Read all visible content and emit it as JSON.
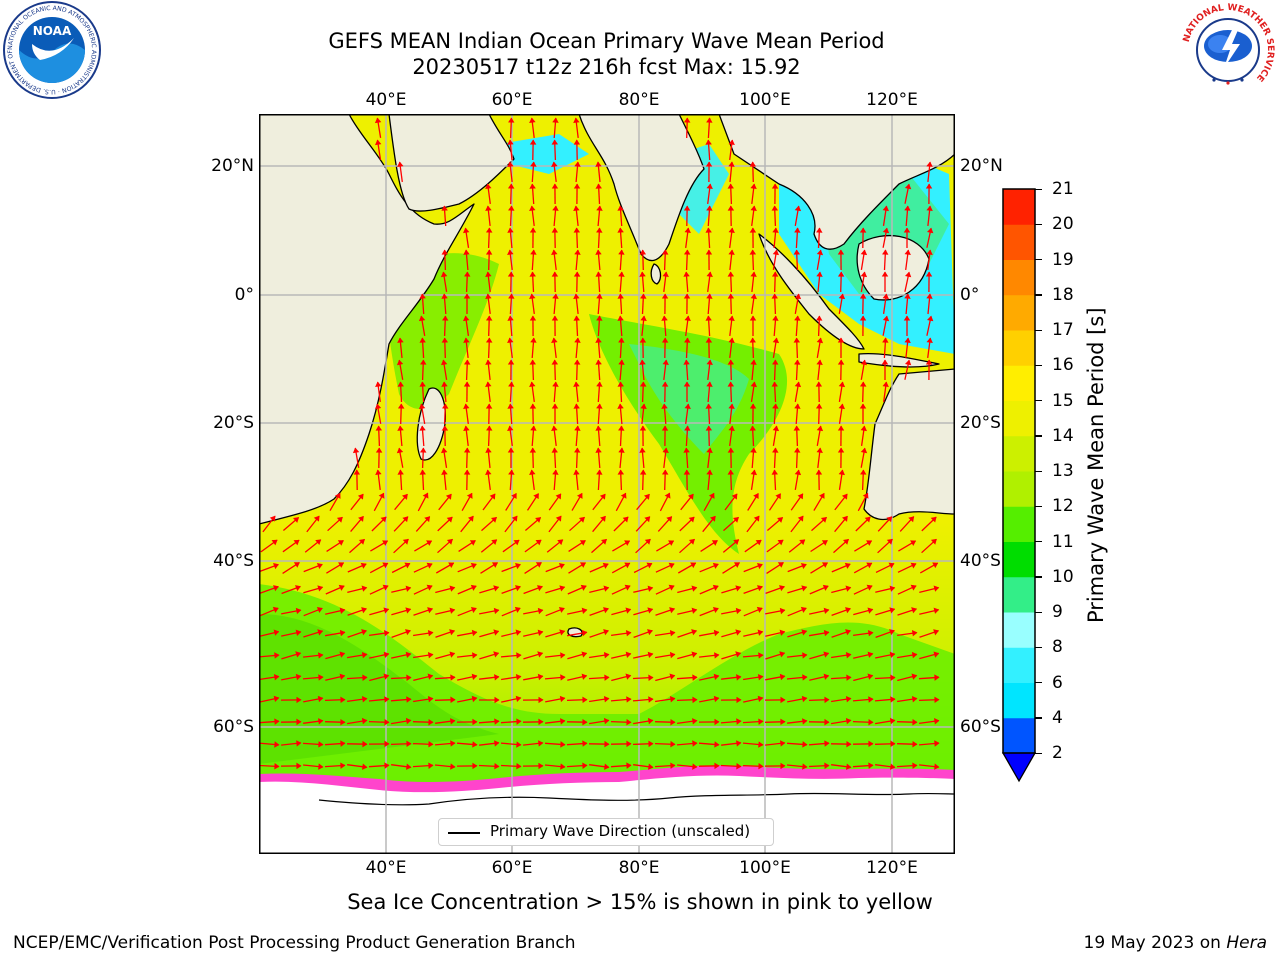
{
  "title": {
    "line1": "GEFS MEAN Indian Ocean Primary Wave Mean Period",
    "line2": "20230517 t12z 216h fcst   Max: 15.92"
  },
  "map": {
    "lon_labels": [
      "40°E",
      "60°E",
      "80°E",
      "100°E",
      "120°E"
    ],
    "lat_labels": [
      "20°N",
      "0°",
      "20°S",
      "40°S",
      "60°S"
    ],
    "colors": {
      "land": "#efeedd",
      "grid": "#b8b8b8",
      "coast": "#000000",
      "arrows": "#ff0000",
      "ice": "#ffffff"
    },
    "legend": "Primary Wave Direction (unscaled)"
  },
  "colorbar": {
    "label": "Primary Wave Mean Period [s]",
    "ticks": [
      "2",
      "4",
      "6",
      "8",
      "9",
      "10",
      "11",
      "12",
      "13",
      "14",
      "15",
      "16",
      "17",
      "18",
      "19",
      "20",
      "21"
    ],
    "colors": [
      "#0055ff",
      "#00e5ff",
      "#33f0ff",
      "#99ffff",
      "#33ee88",
      "#00dd00",
      "#55ee00",
      "#b0f000",
      "#ccf000",
      "#eef000",
      "#ffee00",
      "#ffd000",
      "#ffaa00",
      "#ff8800",
      "#ff5500",
      "#ff2200"
    ],
    "extend_color": "#0000ff"
  },
  "ice_note": "Sea Ice Concentration > 15% is shown in pink to yellow",
  "footer": {
    "left": "NCEP/EMC/Verification Post Processing Product Generation Branch",
    "right_date": "19 May 2023 on ",
    "right_host": "Hera"
  },
  "logos": {
    "noaa": "NOAA",
    "noaa_ring": "NATIONAL OCEANIC AND ATMOSPHERIC ADMINISTRATION · U.S. DEPARTMENT OF COMMERCE ·",
    "nws_ring": "NATIONAL WEATHER SERVICE"
  }
}
